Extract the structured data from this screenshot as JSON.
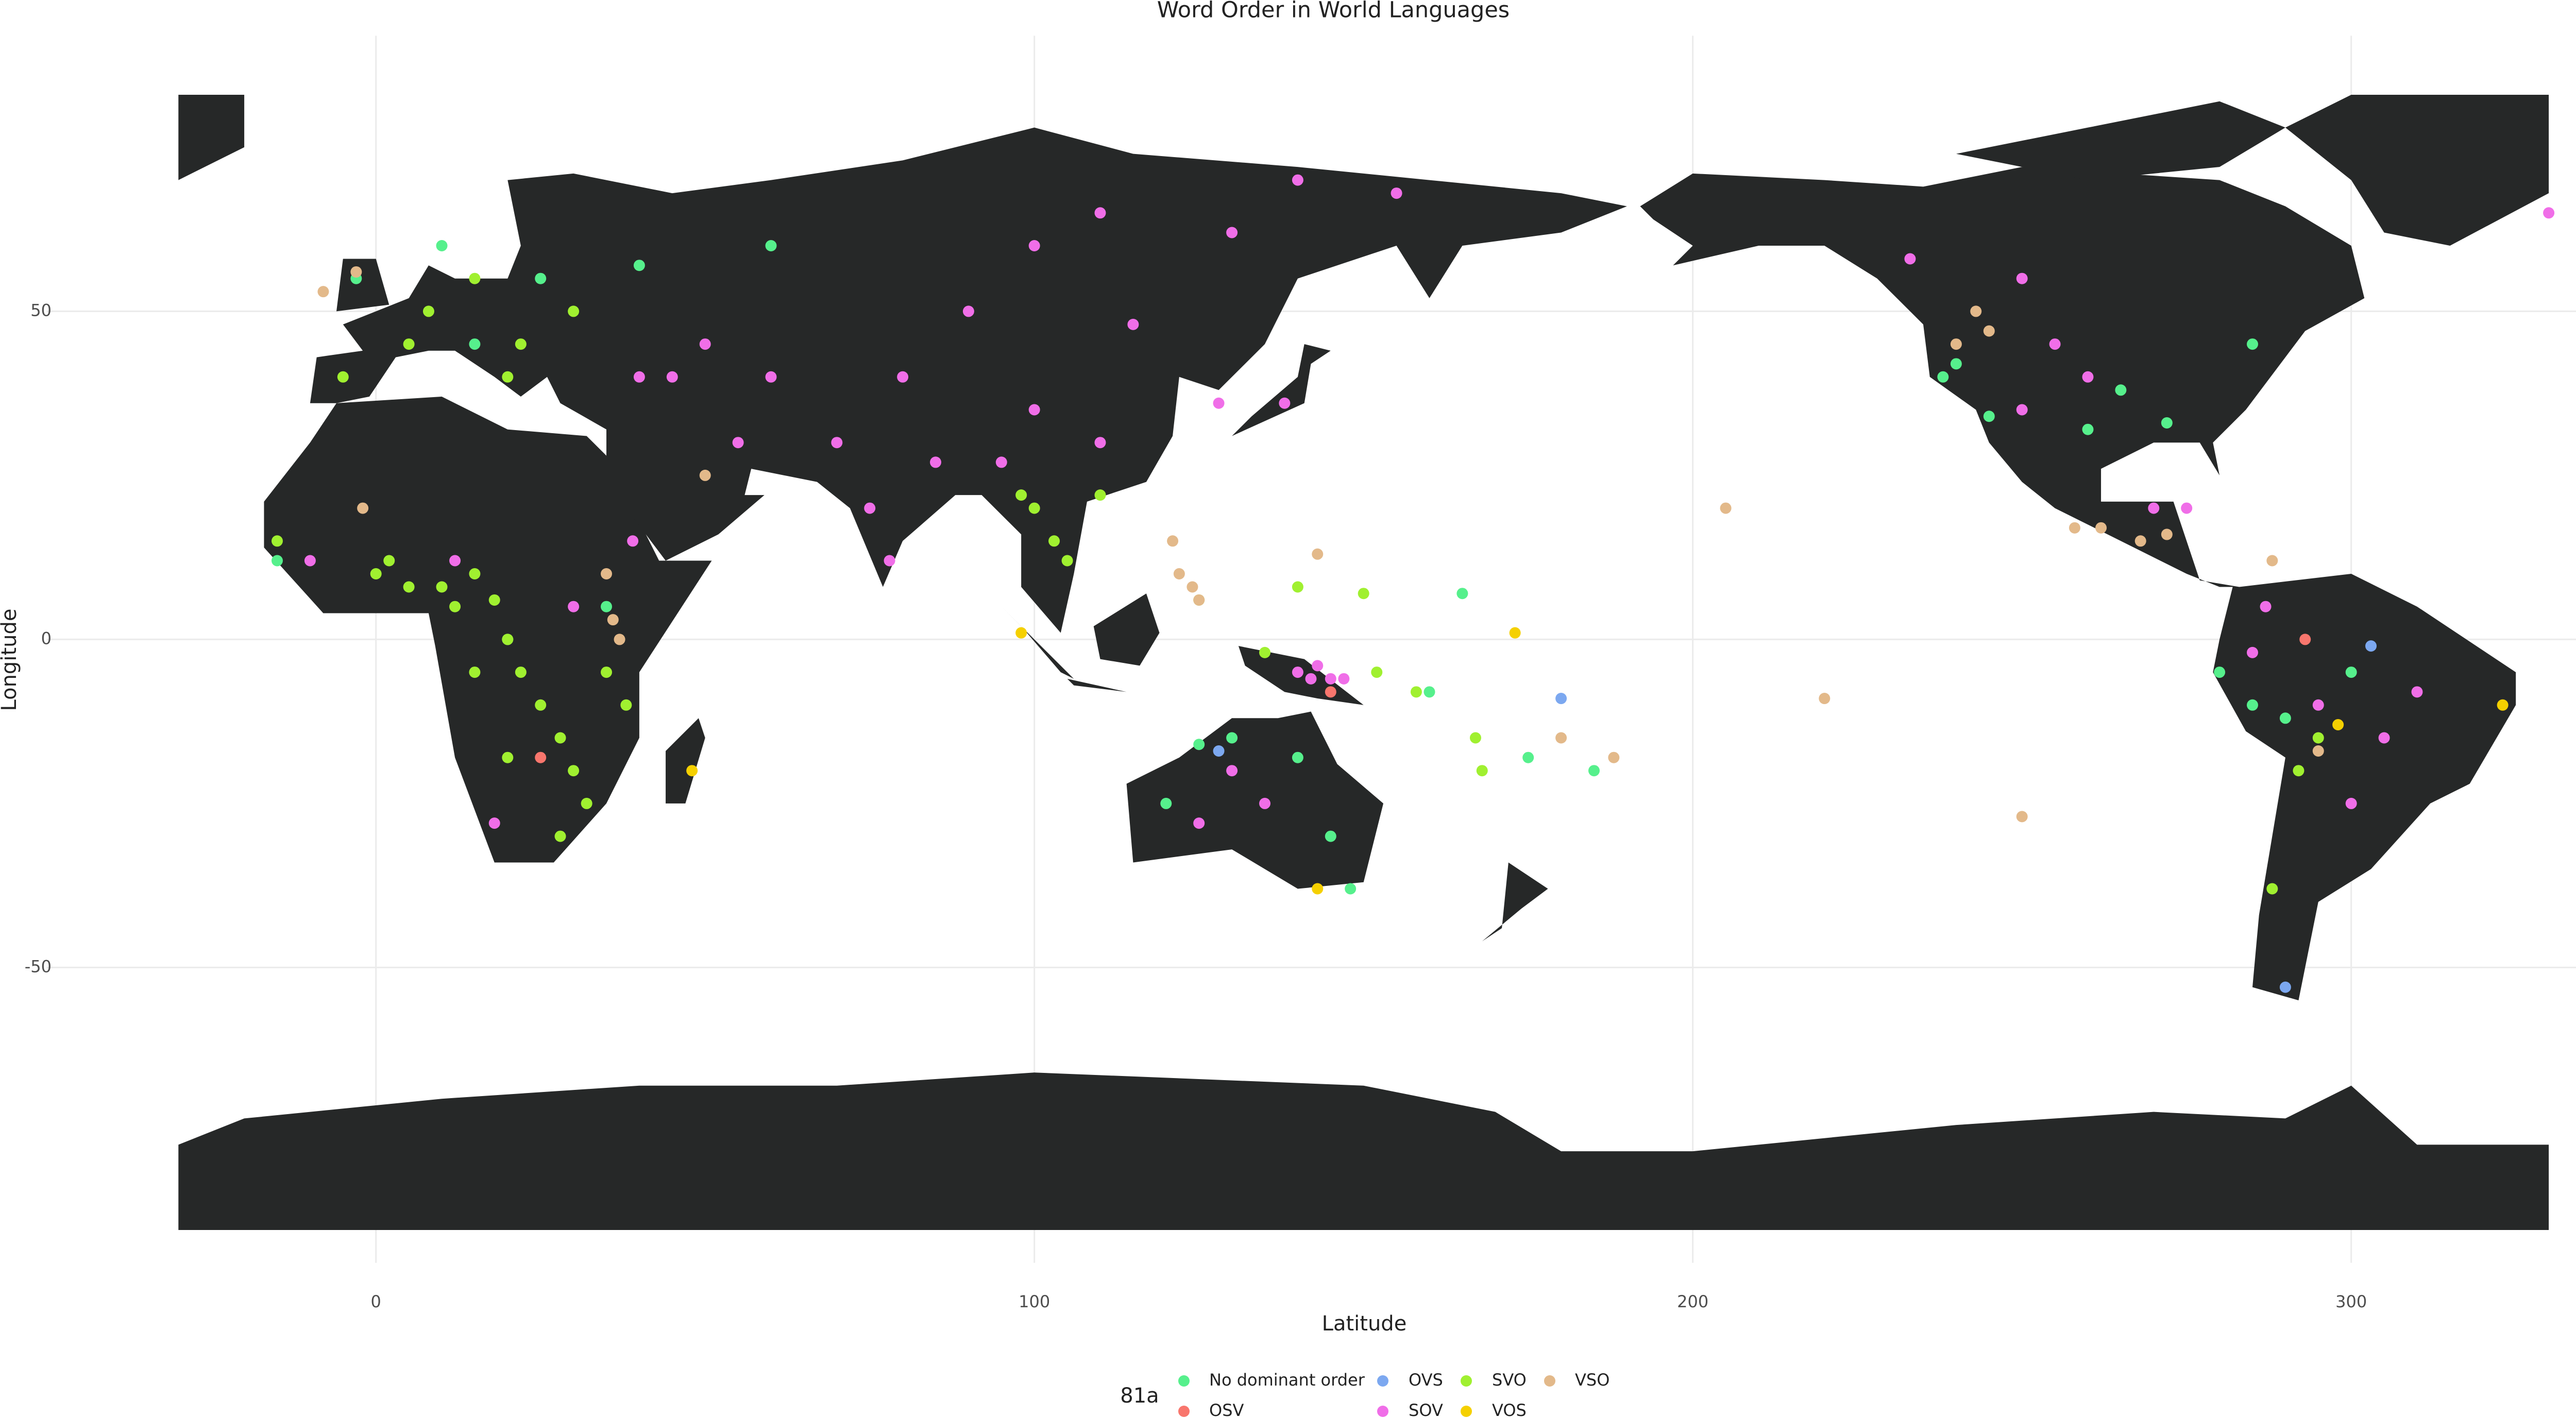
{
  "chart_data": {
    "type": "scatter",
    "title": "Word Order in World Languages",
    "x_label": "Latitude",
    "y_label": "Longitude",
    "legend_title": "81a",
    "xlim": [
      -50,
      340
    ],
    "ylim": [
      -95,
      92
    ],
    "xticks": [
      0,
      100,
      200,
      300
    ],
    "yticks": [
      -50,
      0,
      50
    ],
    "grid": true,
    "series": [
      {
        "name": "No dominant order",
        "color": "#56f08c",
        "x": [
          -15,
          10,
          15,
          25,
          -3,
          40,
          60,
          125,
          130,
          140,
          120,
          145,
          148,
          240,
          238,
          245,
          260,
          272,
          285,
          265,
          280,
          285,
          290,
          300,
          20,
          35,
          160,
          175,
          185,
          165
        ],
        "values": [
          12,
          60,
          45,
          55,
          55,
          57,
          60,
          -16,
          -15,
          -18,
          -25,
          -30,
          -38,
          42,
          40,
          34,
          32,
          33,
          45,
          38,
          -5,
          -10,
          -12,
          -5,
          0,
          5,
          -8,
          -18,
          -20,
          7
        ]
      },
      {
        "name": "OSV",
        "color": "#f8766d",
        "x": [
          25,
          293,
          145
        ],
        "values": [
          -18,
          0,
          -8
        ]
      },
      {
        "name": "OVS",
        "color": "#7ca8f0",
        "x": [
          180,
          290,
          303,
          128
        ],
        "values": [
          -9,
          -53,
          -1,
          -17
        ]
      },
      {
        "name": "SOV",
        "color": "#f06ee8",
        "x": [
          50,
          70,
          80,
          90,
          100,
          110,
          130,
          140,
          155,
          95,
          85,
          75,
          78,
          45,
          40,
          55,
          60,
          100,
          110,
          115,
          128,
          138,
          142,
          145,
          147,
          140,
          143,
          130,
          135,
          125,
          233,
          250,
          255,
          260,
          250,
          270,
          275,
          287,
          285,
          295,
          305,
          300,
          310,
          18,
          30,
          39,
          12,
          -10,
          330
        ],
        "values": [
          45,
          30,
          40,
          50,
          60,
          65,
          62,
          70,
          68,
          27,
          27,
          20,
          12,
          40,
          40,
          30,
          40,
          35,
          30,
          48,
          36,
          36,
          -6,
          -6,
          -6,
          -5,
          -4,
          -20,
          -25,
          -28,
          58,
          55,
          45,
          40,
          35,
          20,
          20,
          5,
          -2,
          -10,
          -15,
          -25,
          -8,
          -28,
          5,
          15,
          12,
          12,
          65
        ]
      },
      {
        "name": "SVO",
        "color": "#a0f030",
        "x": [
          0,
          5,
          10,
          12,
          15,
          18,
          20,
          22,
          25,
          28,
          30,
          32,
          28,
          20,
          15,
          35,
          38,
          8,
          5,
          15,
          22,
          30,
          100,
          103,
          105,
          98,
          110,
          135,
          152,
          158,
          167,
          168,
          140,
          150,
          125,
          -5,
          20,
          292,
          295,
          288,
          -15,
          2
        ],
        "values": [
          10,
          8,
          8,
          5,
          10,
          6,
          0,
          -5,
          -10,
          -15,
          -20,
          -25,
          -30,
          -18,
          -5,
          -5,
          -10,
          50,
          45,
          55,
          45,
          50,
          20,
          15,
          12,
          22,
          22,
          -2,
          -5,
          -8,
          -15,
          -20,
          8,
          7,
          6,
          40,
          40,
          -20,
          -15,
          -38,
          15,
          12
        ]
      },
      {
        "name": "VOS",
        "color": "#f5d000",
        "x": [
          48,
          173,
          98,
          143,
          298,
          323
        ],
        "values": [
          -20,
          1,
          1,
          -38,
          -13,
          -10
        ]
      },
      {
        "name": "VSO",
        "color": "#e3b98a",
        "x": [
          -8,
          -3,
          35,
          36,
          37,
          121,
          122,
          124,
          125,
          258,
          262,
          268,
          240,
          243,
          245,
          205,
          250,
          220,
          188,
          180,
          143,
          -2,
          50,
          272,
          295,
          288
        ],
        "values": [
          53,
          56,
          10,
          3,
          0,
          15,
          10,
          8,
          6,
          17,
          17,
          15,
          45,
          50,
          47,
          20,
          -27,
          -9,
          -18,
          -15,
          13,
          20,
          25,
          16,
          -17,
          12
        ]
      }
    ]
  }
}
